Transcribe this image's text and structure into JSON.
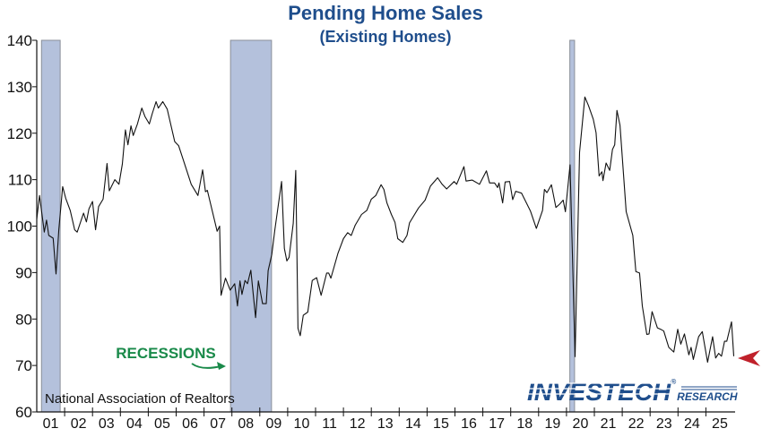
{
  "chart_data": {
    "type": "line",
    "title": "Pending Home Sales",
    "subtitle": "(Existing Homes)",
    "source": "National Association of Realtors",
    "annotation": "RECESSIONS",
    "logo": "INVESTECH RESEARCH",
    "ylim": [
      60,
      140
    ],
    "yticks": [
      60,
      70,
      80,
      90,
      100,
      110,
      120,
      130,
      140
    ],
    "xlim": [
      2001,
      2026
    ],
    "xtick_labels": [
      "01",
      "02",
      "03",
      "04",
      "05",
      "06",
      "07",
      "08",
      "09",
      "10",
      "11",
      "12",
      "13",
      "14",
      "15",
      "16",
      "17",
      "18",
      "19",
      "20",
      "21",
      "22",
      "23",
      "24",
      "25"
    ],
    "grid": false,
    "colors": {
      "title": "#1f4e8c",
      "line": "#111111",
      "recession": "#b4c1dc",
      "annotation": "#1a8a4a",
      "marker": "#c0212b",
      "logo": "#1f4e8c"
    },
    "recessions": [
      [
        2001.17,
        2001.84
      ],
      [
        2007.95,
        2009.42
      ],
      [
        2020.12,
        2020.29
      ]
    ],
    "latest_marker_value": 72,
    "series": [
      {
        "x": [
          2001.0,
          2001.1,
          2001.27,
          2001.35,
          2001.43,
          2001.59,
          2001.69,
          2001.79,
          2001.93,
          2002.04,
          2002.2,
          2002.36,
          2002.45,
          2002.68,
          2002.78,
          2002.87,
          2003.0,
          2003.11,
          2003.22,
          2003.38,
          2003.52,
          2003.6,
          2003.8,
          2003.95,
          2004.07,
          2004.18,
          2004.27,
          2004.38,
          2004.46,
          2004.61,
          2004.77,
          2004.88,
          2005.04,
          2005.14,
          2005.28,
          2005.36,
          2005.52,
          2005.68,
          2005.95,
          2006.09,
          2006.27,
          2006.54,
          2006.78,
          2006.95,
          2007.05,
          2007.12,
          2007.47,
          2007.56,
          2007.61,
          2007.77,
          2007.94,
          2008.1,
          2008.2,
          2008.29,
          2008.36,
          2008.47,
          2008.56,
          2008.68,
          2008.85,
          2008.95,
          2009.1,
          2009.23,
          2009.3,
          2009.43,
          2009.54,
          2009.78,
          2009.88,
          2009.97,
          2010.05,
          2010.2,
          2010.29,
          2010.37,
          2010.45,
          2010.56,
          2010.72,
          2010.88,
          2011.04,
          2011.2,
          2011.4,
          2011.47,
          2011.55,
          2011.8,
          2012.0,
          2012.15,
          2012.28,
          2012.42,
          2012.65,
          2012.84,
          2013.0,
          2013.16,
          2013.35,
          2013.45,
          2013.56,
          2013.72,
          2013.85,
          2013.95,
          2014.13,
          2014.28,
          2014.37,
          2014.69,
          2014.93,
          2015.12,
          2015.38,
          2015.54,
          2015.7,
          2015.97,
          2016.06,
          2016.32,
          2016.4,
          2016.62,
          2016.88,
          2017.13,
          2017.24,
          2017.42,
          2017.53,
          2017.58,
          2017.71,
          2017.8,
          2017.96,
          2018.07,
          2018.18,
          2018.39,
          2018.71,
          2018.92,
          2019.14,
          2019.21,
          2019.3,
          2019.46,
          2019.62,
          2019.75,
          2019.88,
          2019.96,
          2020.13,
          2020.31,
          2020.47,
          2020.66,
          2020.79,
          2020.96,
          2021.06,
          2021.17,
          2021.27,
          2021.31,
          2021.42,
          2021.55,
          2021.65,
          2021.73,
          2021.81,
          2021.92,
          2022.14,
          2022.38,
          2022.49,
          2022.62,
          2022.72,
          2022.88,
          2022.96,
          2023.07,
          2023.26,
          2023.38,
          2023.49,
          2023.67,
          2023.85,
          2023.99,
          2024.1,
          2024.23,
          2024.39,
          2024.47,
          2024.55,
          2024.74,
          2024.87,
          2025.06,
          2025.24,
          2025.35,
          2025.46,
          2025.56,
          2025.67,
          2025.75,
          2025.92,
          2026.0
        ],
        "y": [
          101.5,
          106.6,
          98.7,
          101.3,
          98,
          97.4,
          89.7,
          99.2,
          108.5,
          106,
          103.4,
          99.2,
          98.7,
          102.8,
          100.9,
          103.7,
          105.3,
          99.2,
          104.2,
          105.8,
          113.5,
          107.6,
          110,
          109,
          113.4,
          120.7,
          117.5,
          121.6,
          119.5,
          122,
          125.4,
          123.6,
          122,
          124.2,
          126.8,
          125.4,
          126.8,
          125.2,
          118.2,
          117.3,
          114,
          109,
          106.6,
          112.1,
          107.4,
          107.7,
          98.9,
          100,
          85.1,
          88.8,
          86.2,
          87.6,
          82.8,
          88.2,
          85.3,
          88.3,
          87.6,
          90.5,
          80.3,
          88.2,
          83.3,
          83.3,
          90.4,
          93.9,
          99.2,
          109.6,
          95.2,
          92.5,
          93.3,
          100.6,
          112,
          78,
          76.4,
          80.8,
          81.5,
          88.3,
          88.9,
          85.1,
          89.9,
          89.9,
          88.8,
          94.1,
          97.3,
          98.6,
          98,
          100.2,
          102.5,
          103.4,
          105.8,
          106.6,
          108.9,
          107.9,
          105,
          102.5,
          100.8,
          97.3,
          96.5,
          98,
          100.7,
          103.9,
          105.6,
          108.6,
          110.4,
          109,
          108,
          109.6,
          109,
          112.8,
          109.7,
          109.9,
          109,
          111.9,
          109.3,
          109.3,
          108.3,
          109.3,
          105,
          109.5,
          109.6,
          105.7,
          107.5,
          107.1,
          103.2,
          99.5,
          103.4,
          107.9,
          107.2,
          108.9,
          104,
          104.7,
          105.6,
          103.1,
          113.2,
          71.9,
          115.9,
          127.8,
          125.9,
          123,
          120.1,
          110.8,
          111.7,
          109.8,
          113.6,
          112,
          116.5,
          117.5,
          124.9,
          121.7,
          103.1,
          98,
          90.2,
          89.9,
          82.8,
          76.7,
          76.8,
          81.6,
          78.1,
          77.8,
          77.4,
          73.9,
          72.9,
          77.8,
          74.6,
          76.8,
          72.3,
          73.9,
          71.3,
          76.2,
          77.3,
          70.7,
          76.2,
          71.6,
          72.6,
          72,
          75.2,
          75.2,
          79.4,
          72
        ]
      }
    ]
  }
}
